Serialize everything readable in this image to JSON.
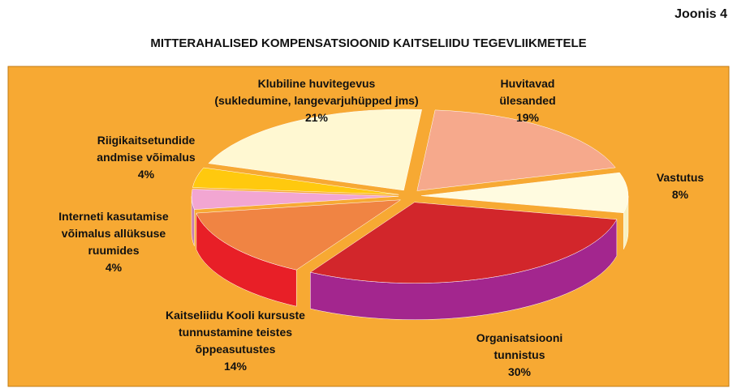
{
  "chart_data": {
    "type": "pie",
    "figure_label": "Joonis 4",
    "title": "MITTERAHALISED KOMPENSATSIOONID KAITSELIIDU TEGEVLIIKMETELE",
    "categories": [
      "Huvitavad\nülesanded",
      "Vastutus",
      "Organisatsiooni\ntunnistus",
      "Kaitseliidu Kooli kursuste\ntunnustamine teistes\nõppeasutustes",
      "Interneti kasutamise\nvõimalus allüksuse\nruumides",
      "Riigikaitsetundide\nandmise võimalus",
      "Klubiline huvitegevus\n(sukledumine, langevarjuhüpped jms)"
    ],
    "values": [
      19,
      8,
      30,
      14,
      4,
      4,
      21
    ],
    "value_labels": [
      "19%",
      "8%",
      "30%",
      "14%",
      "4%",
      "4%",
      "21%"
    ],
    "colors": [
      "#f6a98c",
      "#fffbe0",
      "#d2262b",
      "#f08443",
      "#f2a6d2",
      "#ffc90e",
      "#fff8d2"
    ],
    "side_colors": [
      "#f08a6e",
      "#f7f0c0",
      "#a3268e",
      "#e81f27",
      "#c77fb0",
      "#e0a800",
      "#efe4b0"
    ],
    "background": "#f7a933"
  }
}
